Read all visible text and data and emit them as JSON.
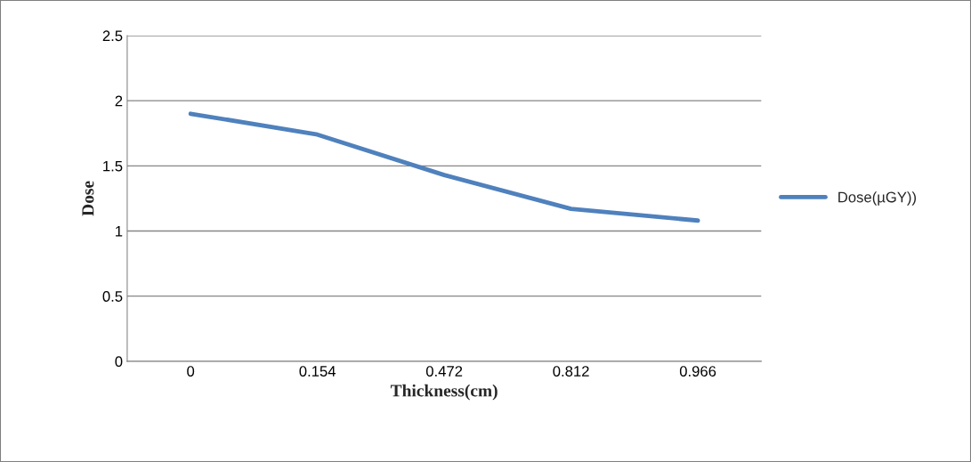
{
  "chart_data": {
    "type": "line",
    "xlabel": "Thickness(cm)",
    "ylabel": "Dose",
    "categories": [
      "0",
      "0.154",
      "0.472",
      "0.812",
      "0.966"
    ],
    "series": [
      {
        "name": "Dose(µGY))",
        "color": "#4f81bd",
        "values": [
          1.9,
          1.74,
          1.43,
          1.17,
          1.08
        ]
      }
    ],
    "ylim": [
      0,
      2.5
    ],
    "yticks": [
      0,
      0.5,
      1,
      1.5,
      2,
      2.5
    ],
    "grid": "y",
    "legend": "right",
    "marker": "none",
    "line_style": "solid"
  }
}
